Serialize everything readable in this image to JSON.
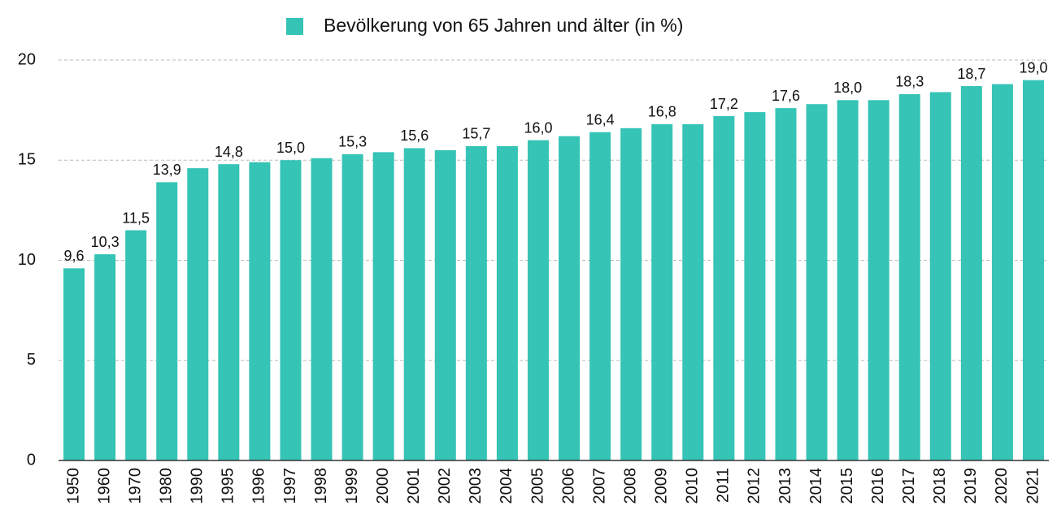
{
  "chart_data": {
    "type": "bar",
    "categories": [
      "1950",
      "1960",
      "1970",
      "1980",
      "1990",
      "1995",
      "1996",
      "1997",
      "1998",
      "1999",
      "2000",
      "2001",
      "2002",
      "2003",
      "2004",
      "2005",
      "2006",
      "2007",
      "2008",
      "2009",
      "2010",
      "2011",
      "2012",
      "2013",
      "2014",
      "2015",
      "2016",
      "2017",
      "2018",
      "2019",
      "2020",
      "2021"
    ],
    "series": [
      {
        "name": "Bevölkerung von 65 Jahren und älter (in %)",
        "color": "#35c4b5",
        "values": [
          9.6,
          10.3,
          11.5,
          13.9,
          14.6,
          14.8,
          14.9,
          15.0,
          15.1,
          15.3,
          15.4,
          15.6,
          15.5,
          15.7,
          15.7,
          16.0,
          16.2,
          16.4,
          16.6,
          16.8,
          16.8,
          17.2,
          17.4,
          17.6,
          17.8,
          18.0,
          18.0,
          18.3,
          18.4,
          18.7,
          18.8,
          19.0
        ],
        "value_labels": [
          "9,6",
          "10,3",
          "11,5",
          "13,9",
          null,
          "14,8",
          null,
          "15,0",
          null,
          "15,3",
          null,
          "15,6",
          null,
          "15,7",
          null,
          "16,0",
          null,
          "16,4",
          null,
          "16,8",
          null,
          "17,2",
          null,
          "17,6",
          null,
          "18,0",
          null,
          "18,3",
          null,
          "18,7",
          null,
          "19,0"
        ]
      }
    ],
    "ylim": [
      0,
      20
    ],
    "yticks": [
      0,
      5,
      10,
      15,
      20
    ],
    "grid": true,
    "legend": "top"
  }
}
